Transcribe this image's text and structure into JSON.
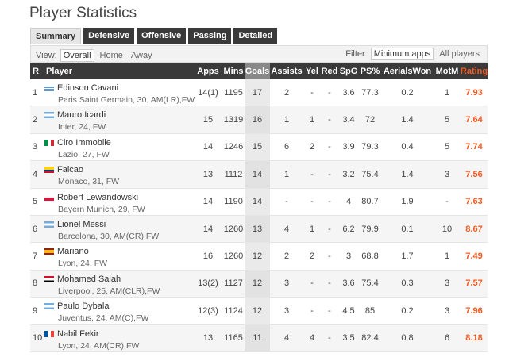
{
  "title": "Player Statistics",
  "tabs": [
    {
      "label": "Summary",
      "active": true
    },
    {
      "label": "Defensive",
      "active": false
    },
    {
      "label": "Offensive",
      "active": false
    },
    {
      "label": "Passing",
      "active": false
    },
    {
      "label": "Detailed",
      "active": false
    }
  ],
  "view": {
    "label": "View:",
    "options": [
      {
        "label": "Overall",
        "selected": true
      },
      {
        "label": "Home",
        "selected": false
      },
      {
        "label": "Away",
        "selected": false
      }
    ]
  },
  "filter": {
    "label": "Filter:",
    "options": [
      {
        "label": "Minimum apps",
        "selected": true
      },
      {
        "label": "All players",
        "selected": false
      }
    ]
  },
  "columns": {
    "rank": "R",
    "player": "Player",
    "apps": "Apps",
    "mins": "Mins",
    "goals": "Goals",
    "assists": "Assists",
    "yel": "Yel",
    "red": "Red",
    "spg": "SpG",
    "ps": "PS%",
    "aerials": "AerialsWon",
    "motm": "MotM",
    "rating": "Rating"
  },
  "colors": {
    "header_bg": "#3a3a3a",
    "rating": "#f15a22",
    "sorted_col": "#888888"
  },
  "players": [
    {
      "rank": "1",
      "name": "Edinson Cavani",
      "meta": "Paris Saint Germain, 30, AM(LR),FW",
      "flag": "uruguay",
      "apps": "14(1)",
      "mins": "1195",
      "goals": "17",
      "assists": "2",
      "yel": "-",
      "red": "-",
      "spg": "3.6",
      "ps": "77.3",
      "aerials": "0.2",
      "motm": "1",
      "rating": "7.93"
    },
    {
      "rank": "2",
      "name": "Mauro Icardi",
      "meta": "Inter, 24, FW",
      "flag": "argentina",
      "apps": "15",
      "mins": "1319",
      "goals": "16",
      "assists": "1",
      "yel": "1",
      "red": "-",
      "spg": "3.4",
      "ps": "72",
      "aerials": "1.4",
      "motm": "5",
      "rating": "7.64"
    },
    {
      "rank": "3",
      "name": "Ciro Immobile",
      "meta": "Lazio, 27, FW",
      "flag": "italy",
      "apps": "14",
      "mins": "1246",
      "goals": "15",
      "assists": "6",
      "yel": "2",
      "red": "-",
      "spg": "3.9",
      "ps": "79.3",
      "aerials": "0.4",
      "motm": "5",
      "rating": "7.74"
    },
    {
      "rank": "4",
      "name": "Falcao",
      "meta": "Monaco, 31, FW",
      "flag": "colombia",
      "apps": "13",
      "mins": "1112",
      "goals": "14",
      "assists": "1",
      "yel": "-",
      "red": "-",
      "spg": "3.2",
      "ps": "75.4",
      "aerials": "1.4",
      "motm": "3",
      "rating": "7.56"
    },
    {
      "rank": "5",
      "name": "Robert Lewandowski",
      "meta": "Bayern Munich, 29, FW",
      "flag": "poland",
      "apps": "14",
      "mins": "1190",
      "goals": "14",
      "assists": "-",
      "yel": "-",
      "red": "-",
      "spg": "4",
      "ps": "80.7",
      "aerials": "1.9",
      "motm": "-",
      "rating": "7.63"
    },
    {
      "rank": "6",
      "name": "Lionel Messi",
      "meta": "Barcelona, 30, AM(CR),FW",
      "flag": "argentina",
      "apps": "14",
      "mins": "1260",
      "goals": "13",
      "assists": "4",
      "yel": "1",
      "red": "-",
      "spg": "6.2",
      "ps": "79.9",
      "aerials": "0.1",
      "motm": "10",
      "rating": "8.67"
    },
    {
      "rank": "7",
      "name": "Mariano",
      "meta": "Lyon, 24, FW",
      "flag": "spain",
      "apps": "16",
      "mins": "1260",
      "goals": "12",
      "assists": "2",
      "yel": "2",
      "red": "-",
      "spg": "3",
      "ps": "68.8",
      "aerials": "1.7",
      "motm": "1",
      "rating": "7.49"
    },
    {
      "rank": "8",
      "name": "Mohamed Salah",
      "meta": "Liverpool, 25, AM(CLR),FW",
      "flag": "egypt",
      "apps": "13(2)",
      "mins": "1127",
      "goals": "12",
      "assists": "3",
      "yel": "-",
      "red": "-",
      "spg": "3.6",
      "ps": "75.4",
      "aerials": "0.3",
      "motm": "3",
      "rating": "7.57"
    },
    {
      "rank": "9",
      "name": "Paulo Dybala",
      "meta": "Juventus, 24, AM(C),FW",
      "flag": "argentina",
      "apps": "12(3)",
      "mins": "1124",
      "goals": "12",
      "assists": "3",
      "yel": "-",
      "red": "-",
      "spg": "4.5",
      "ps": "85",
      "aerials": "0.2",
      "motm": "3",
      "rating": "7.96"
    },
    {
      "rank": "10",
      "name": "Nabil Fekir",
      "meta": "Lyon, 24, AM(CR),FW",
      "flag": "france",
      "apps": "13",
      "mins": "1165",
      "goals": "11",
      "assists": "4",
      "yel": "4",
      "red": "-",
      "spg": "3.5",
      "ps": "82.4",
      "aerials": "0.8",
      "motm": "6",
      "rating": "8.18"
    }
  ]
}
